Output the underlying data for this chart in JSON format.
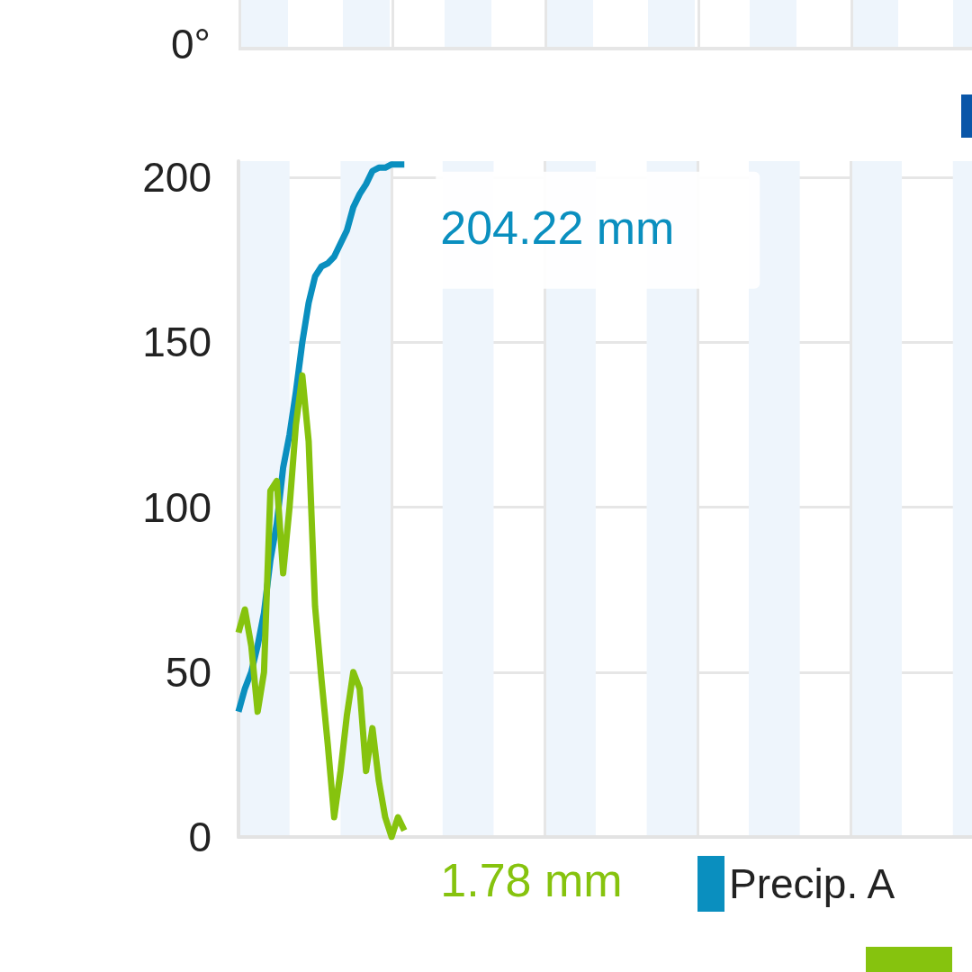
{
  "chart_data": [
    {
      "type": "other",
      "annotations": [
        "0°"
      ]
    },
    {
      "type": "line",
      "categories": [
        null,
        null,
        null,
        null,
        null,
        null,
        null,
        null,
        null,
        null,
        null,
        null,
        null,
        null,
        null,
        null,
        null,
        null,
        null,
        null,
        null,
        null,
        null,
        null,
        null,
        null,
        null,
        null,
        null,
        null,
        null,
        null,
        null,
        null,
        null,
        null,
        null,
        null,
        null,
        null,
        null,
        null,
        null,
        null,
        null,
        null,
        null,
        null,
        null,
        null,
        null,
        null,
        null,
        null,
        null,
        null,
        null,
        null,
        null,
        null,
        null,
        null,
        null,
        null,
        null,
        null,
        null,
        null,
        null,
        null,
        null,
        null,
        null,
        null,
        null,
        null,
        null,
        null,
        null,
        null,
        null,
        null,
        null,
        null,
        null,
        null,
        null,
        null,
        null,
        null,
        null,
        null,
        null,
        null,
        null,
        null,
        null,
        null,
        null,
        null,
        null,
        null,
        null,
        null,
        null,
        null,
        null,
        null,
        null,
        null,
        null,
        null,
        null,
        null,
        null,
        null
      ],
      "series": [
        {
          "name": "Precip. A",
          "color": "#0a8fbf",
          "values": [
            38,
            45,
            50,
            58,
            68,
            84,
            95,
            112,
            122,
            135,
            150,
            162,
            170,
            173,
            174,
            176,
            180,
            184,
            191,
            195,
            198,
            202,
            203,
            203,
            204,
            204,
            204,
            null,
            null,
            null,
            null,
            null,
            null,
            null,
            null,
            null,
            null,
            null,
            null,
            null,
            null,
            null,
            null,
            null,
            null,
            null,
            null,
            null,
            null,
            null,
            null,
            null,
            null,
            null,
            null,
            null,
            null,
            null,
            null,
            null,
            null,
            null,
            null,
            null,
            null,
            null,
            null,
            null,
            null,
            null,
            null,
            null,
            null,
            null,
            null,
            null,
            null,
            null,
            null,
            null,
            null,
            null,
            null,
            null,
            null,
            null,
            null,
            null,
            null,
            null,
            null,
            null,
            null,
            null,
            null,
            null,
            null,
            null,
            null,
            null,
            null,
            null,
            null,
            null,
            null,
            null,
            null,
            null,
            null,
            null,
            null,
            null,
            null,
            null,
            null,
            null
          ]
        },
        {
          "color": "#86c30e",
          "values": [
            62,
            69,
            58,
            38,
            50,
            105,
            108,
            80,
            100,
            125,
            140,
            120,
            70,
            48,
            28,
            6,
            20,
            37,
            50,
            45,
            20,
            33,
            17,
            6,
            0,
            6,
            2,
            null,
            null,
            null,
            null,
            null,
            null,
            null,
            null,
            null,
            null,
            null,
            null,
            null,
            null,
            null,
            null,
            null,
            null,
            null,
            null,
            null,
            null,
            null,
            null,
            null,
            null,
            null,
            null,
            null,
            null,
            null,
            null,
            null,
            null,
            null,
            null,
            null,
            null,
            null,
            null,
            null,
            null,
            null,
            null,
            null,
            null,
            null,
            null,
            null,
            null,
            null,
            null,
            null,
            null,
            null,
            null,
            null,
            null,
            null,
            null,
            null,
            null,
            null,
            null,
            null,
            null,
            null,
            null,
            null,
            null,
            null,
            null,
            null,
            null,
            null,
            null,
            null,
            null,
            null,
            null,
            null,
            null,
            null,
            null,
            null,
            null,
            null,
            null,
            null
          ]
        }
      ],
      "annotations": [
        "204.22 mm",
        "1.78 mm"
      ],
      "ylim": [
        0,
        205
      ],
      "yticks": [
        0,
        50,
        100,
        150,
        200
      ],
      "grid": true,
      "legend": "bottom",
      "tick_labels": "y"
    }
  ]
}
